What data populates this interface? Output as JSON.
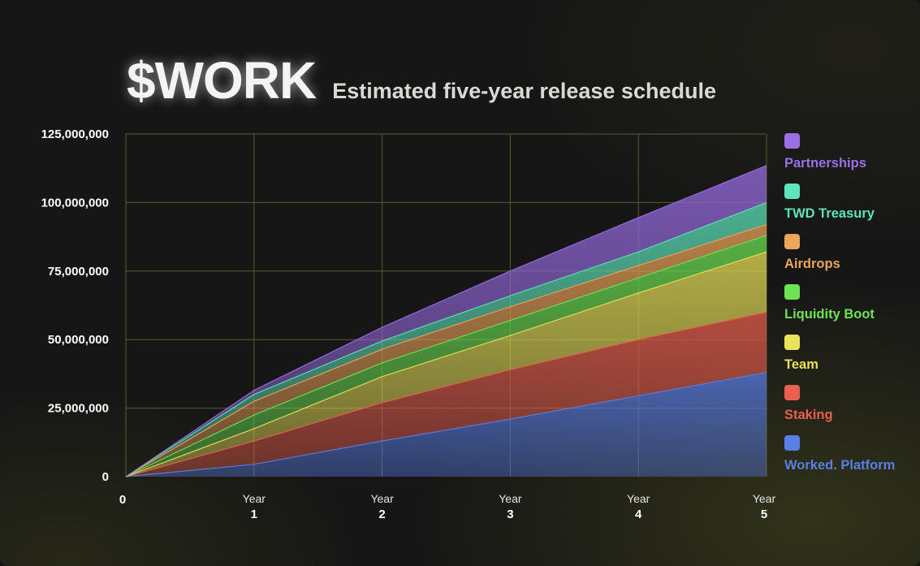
{
  "header": {
    "title": "$WORK",
    "subtitle": "Estimated five-year release schedule"
  },
  "chart_data": {
    "type": "area",
    "stacked": true,
    "title": "$WORK",
    "subtitle": "Estimated five-year release schedule",
    "x": [
      0,
      1,
      2,
      3,
      4,
      5
    ],
    "x_tick_labels": [
      {
        "top": "",
        "bottom": "0"
      },
      {
        "top": "Year",
        "bottom": "1"
      },
      {
        "top": "Year",
        "bottom": "2"
      },
      {
        "top": "Year",
        "bottom": "3"
      },
      {
        "top": "Year",
        "bottom": "4"
      },
      {
        "top": "Year",
        "bottom": "5"
      }
    ],
    "ylim": [
      0,
      125000000
    ],
    "y_ticks": [
      0,
      25000000,
      50000000,
      75000000,
      100000000,
      125000000
    ],
    "y_tick_labels": [
      "0",
      "25,000,000",
      "50,000,000",
      "75,000,000",
      "100,000,000",
      "125,000,000"
    ],
    "grid": true,
    "legend_position": "right",
    "series": [
      {
        "name": "Worked. Platform",
        "color": "#5b7ee5",
        "values": [
          0,
          4500000,
          13000000,
          21000000,
          29500000,
          38000000
        ]
      },
      {
        "name": "Staking",
        "color": "#e8604f",
        "values": [
          0,
          8500000,
          14000000,
          18000000,
          20500000,
          22000000
        ]
      },
      {
        "name": "Team",
        "color": "#e9e25a",
        "values": [
          0,
          4500000,
          9500000,
          12500000,
          17000000,
          22000000
        ]
      },
      {
        "name": "Liquidity Boot",
        "color": "#6fe356",
        "values": [
          0,
          5000000,
          5000000,
          5500000,
          5500000,
          6000000
        ]
      },
      {
        "name": "Airdrops",
        "color": "#eda45b",
        "values": [
          0,
          5000000,
          5000000,
          5000000,
          4500000,
          4000000
        ]
      },
      {
        "name": "TWD Treasury",
        "color": "#5fe3bb",
        "values": [
          0,
          2500000,
          3000000,
          4000000,
          5000000,
          8000000
        ]
      },
      {
        "name": "Partnerships",
        "color": "#9c6fe6",
        "values": [
          0,
          1500000,
          5000000,
          9000000,
          12500000,
          13500000
        ]
      }
    ]
  }
}
